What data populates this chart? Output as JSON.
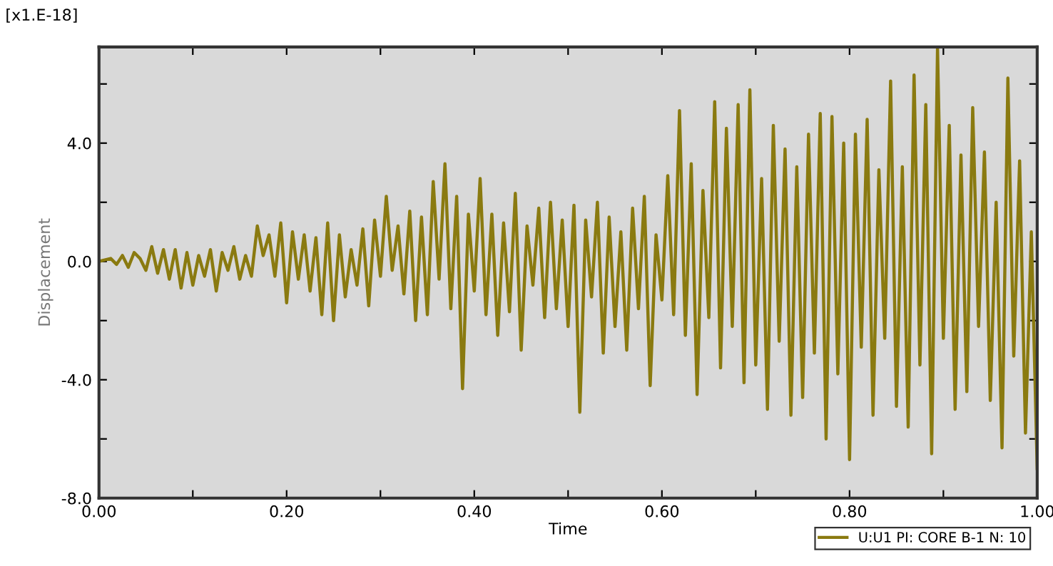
{
  "chart_data": {
    "type": "line",
    "xlabel": "Time",
    "ylabel": "Displacement",
    "annotations": [
      "[x1.E-18]"
    ],
    "xlim": [
      0.0,
      1.0
    ],
    "ylim": [
      -8.0,
      7.25
    ],
    "xticks": [
      {
        "value": 0.0,
        "label": "0.00"
      },
      {
        "value": 0.1,
        "label": null
      },
      {
        "value": 0.2,
        "label": "0.20"
      },
      {
        "value": 0.3,
        "label": null
      },
      {
        "value": 0.4,
        "label": "0.40"
      },
      {
        "value": 0.5,
        "label": null
      },
      {
        "value": 0.6,
        "label": "0.60"
      },
      {
        "value": 0.7,
        "label": null
      },
      {
        "value": 0.8,
        "label": "0.80"
      },
      {
        "value": 0.9,
        "label": null
      },
      {
        "value": 1.0,
        "label": "1.00"
      }
    ],
    "yticks": [
      {
        "value": -8,
        "label": "-8.0"
      },
      {
        "value": -6,
        "label": null
      },
      {
        "value": -4,
        "label": "-4.0"
      },
      {
        "value": -2,
        "label": null
      },
      {
        "value": 0,
        "label": "0.0"
      },
      {
        "value": 2,
        "label": null
      },
      {
        "value": 4,
        "label": "4.0"
      },
      {
        "value": 6,
        "label": null
      }
    ],
    "grid": false,
    "legend": "bottom right",
    "marker": "none",
    "line_style": "solid",
    "x": [
      0,
      0.00625,
      0.0125,
      0.01875,
      0.025,
      0.03125,
      0.0375,
      0.04375,
      0.05,
      0.05625,
      0.0625,
      0.06875,
      0.075,
      0.08125,
      0.0875,
      0.09375,
      0.1,
      0.10625,
      0.1125,
      0.11875,
      0.125,
      0.13125,
      0.1375,
      0.14375,
      0.15,
      0.15625,
      0.1625,
      0.16875,
      0.175,
      0.18125,
      0.1875,
      0.19375,
      0.2,
      0.20625,
      0.2125,
      0.21875,
      0.225,
      0.23125,
      0.2375,
      0.24375,
      0.25,
      0.25625,
      0.2625,
      0.26875,
      0.275,
      0.28125,
      0.2875,
      0.29375,
      0.3,
      0.30625,
      0.3125,
      0.31875,
      0.325,
      0.33125,
      0.3375,
      0.34375,
      0.35,
      0.35625,
      0.3625,
      0.36875,
      0.375,
      0.38125,
      0.3875,
      0.39375,
      0.4,
      0.40625,
      0.4125,
      0.41875,
      0.425,
      0.43125,
      0.4375,
      0.44375,
      0.45,
      0.45625,
      0.4625,
      0.46875,
      0.475,
      0.48125,
      0.4875,
      0.49375,
      0.5,
      0.50625,
      0.5125,
      0.51875,
      0.525,
      0.53125,
      0.5375,
      0.54375,
      0.55,
      0.55625,
      0.5625,
      0.56875,
      0.575,
      0.58125,
      0.5875,
      0.59375,
      0.6,
      0.60625,
      0.6125,
      0.61875,
      0.625,
      0.63125,
      0.6375,
      0.64375,
      0.65,
      0.65625,
      0.6625,
      0.66875,
      0.675,
      0.68125,
      0.6875,
      0.69375,
      0.7,
      0.70625,
      0.7125,
      0.71875,
      0.725,
      0.73125,
      0.7375,
      0.74375,
      0.75,
      0.75625,
      0.7625,
      0.76875,
      0.775,
      0.78125,
      0.7875,
      0.79375,
      0.8,
      0.80625,
      0.8125,
      0.81875,
      0.825,
      0.83125,
      0.8375,
      0.84375,
      0.85,
      0.85625,
      0.8625,
      0.86875,
      0.875,
      0.88125,
      0.8875,
      0.89375,
      0.9,
      0.90625,
      0.9125,
      0.91875,
      0.925,
      0.93125,
      0.9375,
      0.94375,
      0.95,
      0.95625,
      0.9625,
      0.96875,
      0.975,
      0.98125,
      0.9875,
      0.99375,
      1.0
    ],
    "series": [
      {
        "name": "U:U1 PI: CORE B-1 N: 10",
        "color": "#8a7a10",
        "values": [
          0,
          0.05,
          0.1,
          -0.1,
          0.2,
          -0.2,
          0.3,
          0.1,
          -0.3,
          0.5,
          -0.4,
          0.4,
          -0.6,
          0.4,
          -0.9,
          0.3,
          -0.8,
          0.2,
          -0.5,
          0.4,
          -1.0,
          0.3,
          -0.3,
          0.5,
          -0.6,
          0.2,
          -0.5,
          1.2,
          0.2,
          0.9,
          -0.5,
          1.3,
          -1.4,
          1.0,
          -0.6,
          0.9,
          -1.0,
          0.8,
          -1.8,
          1.3,
          -2.0,
          0.9,
          -1.2,
          0.4,
          -0.8,
          1.1,
          -1.5,
          1.4,
          -0.5,
          2.2,
          -0.3,
          1.2,
          -1.1,
          1.7,
          -2.0,
          1.5,
          -1.8,
          2.7,
          -0.6,
          3.3,
          -1.6,
          2.2,
          -4.3,
          1.6,
          -1.0,
          2.8,
          -1.8,
          1.6,
          -2.5,
          1.3,
          -1.7,
          2.3,
          -3.0,
          1.2,
          -0.8,
          1.8,
          -1.9,
          2.0,
          -1.6,
          1.4,
          -2.2,
          1.9,
          -5.1,
          1.4,
          -1.2,
          2.0,
          -3.1,
          1.5,
          -2.2,
          1.0,
          -3.0,
          1.8,
          -1.6,
          2.2,
          -4.2,
          0.9,
          -1.3,
          2.9,
          -1.8,
          5.1,
          -2.5,
          3.3,
          -4.5,
          2.4,
          -1.9,
          5.4,
          -3.6,
          4.5,
          -2.2,
          5.3,
          -4.1,
          5.8,
          -3.5,
          2.8,
          -5.0,
          4.6,
          -2.7,
          3.8,
          -5.2,
          3.2,
          -4.6,
          4.3,
          -3.1,
          5.0,
          -6.0,
          4.9,
          -3.8,
          4.0,
          -6.7,
          4.3,
          -2.9,
          4.8,
          -5.2,
          3.1,
          -2.6,
          6.1,
          -4.9,
          3.2,
          -5.6,
          6.3,
          -3.5,
          5.3,
          -6.5,
          7.2,
          -2.6,
          4.6,
          -5.0,
          3.6,
          -4.4,
          5.2,
          -2.2,
          3.7,
          -4.7,
          2.0,
          -6.3,
          6.2,
          -3.2,
          3.4,
          -5.8,
          1.0,
          -7.0
        ]
      }
    ]
  }
}
